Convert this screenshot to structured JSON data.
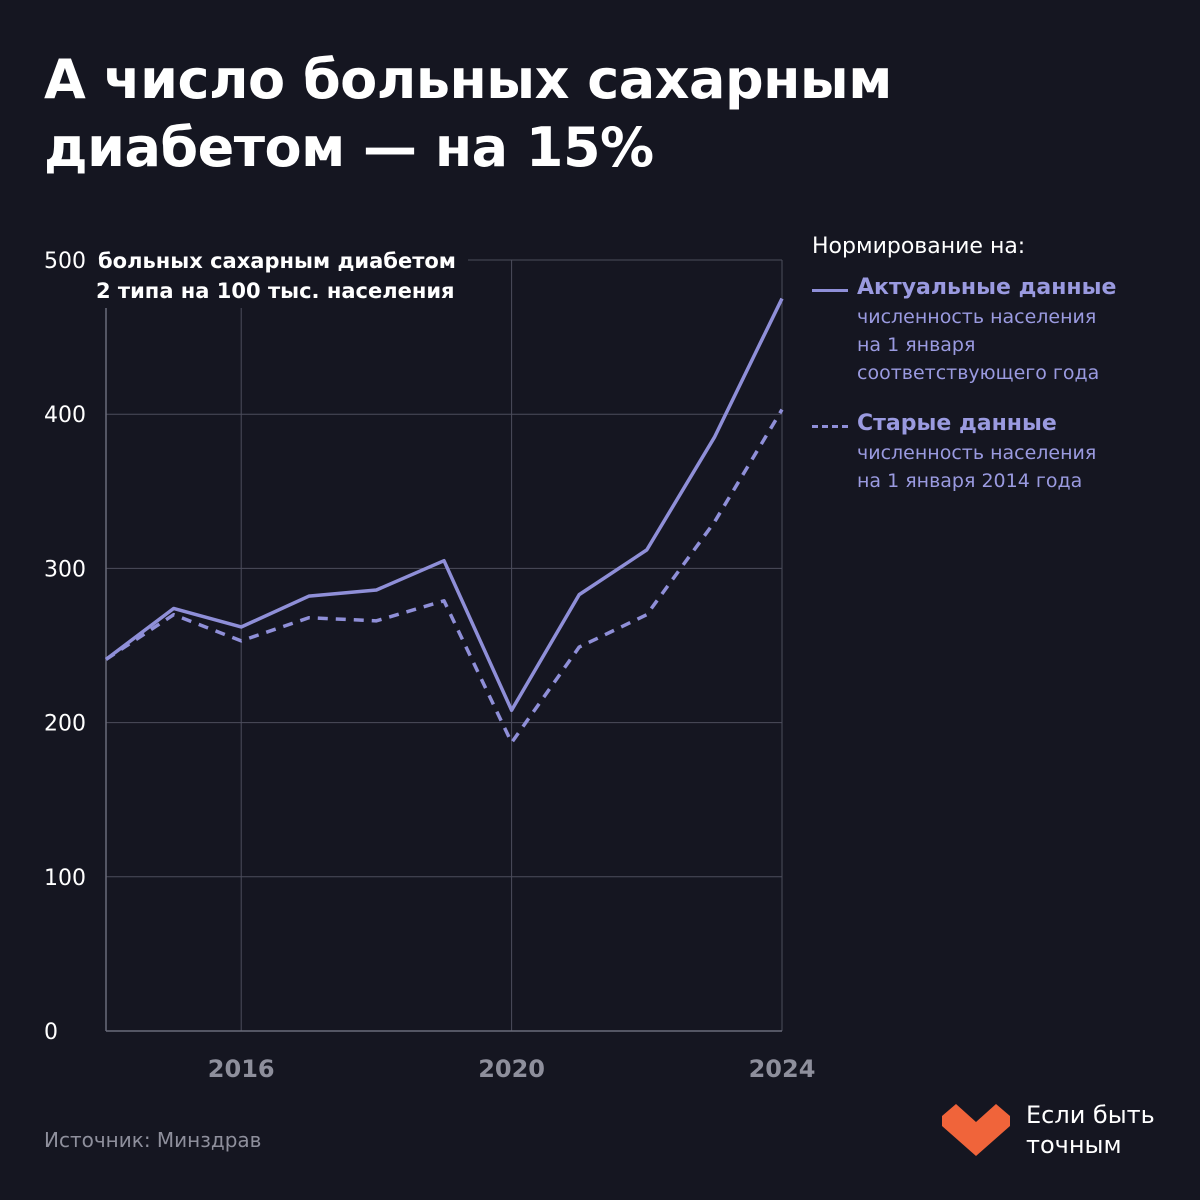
{
  "title": {
    "line1": "А число больных сахарным",
    "line2": "диабетом — на 15%"
  },
  "chart_data": {
    "type": "line",
    "ylabel_line1": "больных сахарным диабетом",
    "ylabel_line2": "2 типа на 100 тыс. населения",
    "ylim": [
      0,
      500
    ],
    "yticks": [
      0,
      100,
      200,
      300,
      400,
      500
    ],
    "xlim": [
      2014,
      2024
    ],
    "xticks": [
      2016,
      2020,
      2024
    ],
    "x": [
      2014,
      2015,
      2016,
      2017,
      2018,
      2019,
      2020,
      2021,
      2022,
      2023,
      2024
    ],
    "series": [
      {
        "name": "Актуальные данные",
        "style": "solid",
        "color": "#8f8fd8",
        "values": [
          241,
          274,
          262,
          282,
          286,
          305,
          208,
          283,
          312,
          385,
          475
        ]
      },
      {
        "name": "Старые данные",
        "style": "dashed",
        "color": "#8f8fd8",
        "values": [
          241,
          270,
          253,
          268,
          266,
          279,
          187,
          249,
          270,
          330,
          403
        ]
      }
    ],
    "grid": true,
    "legend_position": "right"
  },
  "legend": {
    "title": "Нормирование на:",
    "items": [
      {
        "name": "Актуальные данные",
        "desc1": "численность населения",
        "desc2": "на 1 января",
        "desc3": "соответствующего года"
      },
      {
        "name": "Старые данные",
        "desc1": "численность населения",
        "desc2": "на 1 января 2014 года"
      }
    ]
  },
  "source": "Источник: Минздрав",
  "brand": {
    "line1": "Если быть",
    "line2": "точным",
    "logo_color": "#f0643a"
  }
}
